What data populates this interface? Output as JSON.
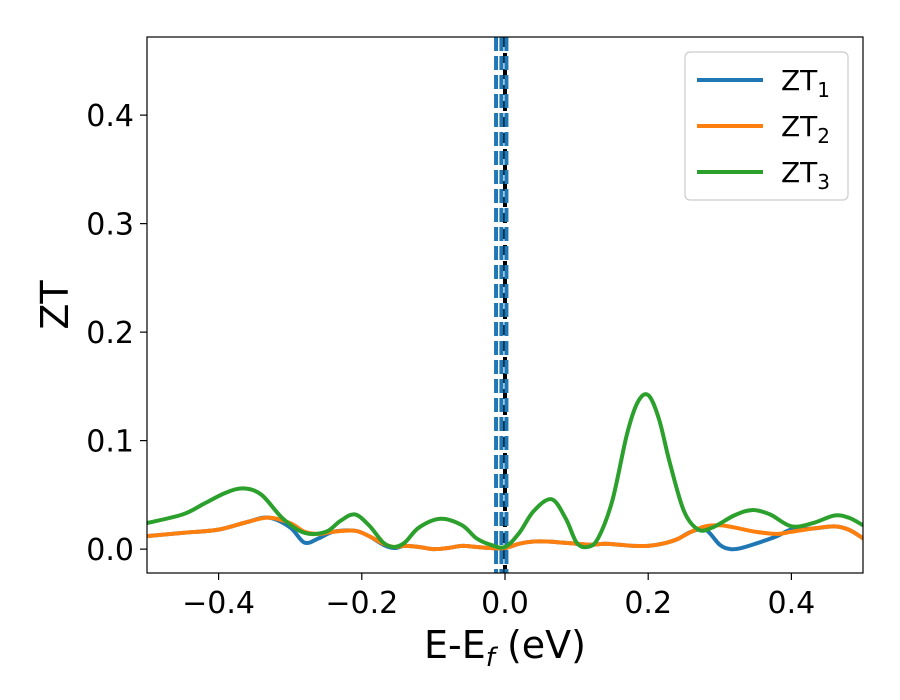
{
  "chart_data": {
    "type": "line",
    "title": "",
    "xlabel": {
      "main": "E-E",
      "sub": "f",
      "suffix": " (eV)"
    },
    "ylabel": "ZT",
    "xlim": [
      -0.5,
      0.5
    ],
    "ylim": [
      -0.022,
      0.472
    ],
    "xticks": [
      -0.4,
      -0.2,
      0.0,
      0.2,
      0.4
    ],
    "xtick_labels": [
      "−0.4",
      "−0.2",
      "0.0",
      "0.2",
      "0.4"
    ],
    "yticks": [
      0.0,
      0.1,
      0.2,
      0.3,
      0.4
    ],
    "ytick_labels": [
      "0.0",
      "0.1",
      "0.2",
      "0.3",
      "0.4"
    ],
    "grid": false,
    "legend_position": "top-right",
    "vertical_lines": [
      {
        "x": 0.0,
        "color": "#000000",
        "style": "dashed"
      },
      {
        "x": -0.0125,
        "color": "#1f77b4",
        "style": "dashed"
      },
      {
        "x": -0.005,
        "color": "#1f77b4",
        "style": "dashed"
      },
      {
        "x": 0.002,
        "color": "#1f77b4",
        "style": "dashed"
      }
    ],
    "series": [
      {
        "name": "ZT",
        "sub": "1",
        "color": "#1f77b4",
        "x": [
          -0.5,
          -0.45,
          -0.4,
          -0.36,
          -0.33,
          -0.3,
          -0.28,
          -0.26,
          -0.24,
          -0.21,
          -0.19,
          -0.17,
          -0.155,
          -0.14,
          -0.12,
          -0.1,
          -0.08,
          -0.06,
          -0.04,
          -0.02,
          0.0,
          0.02,
          0.04,
          0.06,
          0.08,
          0.1,
          0.12,
          0.14,
          0.16,
          0.18,
          0.2,
          0.22,
          0.24,
          0.26,
          0.28,
          0.3,
          0.315,
          0.33,
          0.35,
          0.38,
          0.4,
          0.43,
          0.46,
          0.48,
          0.5
        ],
        "y": [
          0.012,
          0.015,
          0.018,
          0.025,
          0.029,
          0.02,
          0.006,
          0.01,
          0.016,
          0.017,
          0.012,
          0.004,
          0.001,
          0.003,
          0.002,
          0.0,
          0.001,
          0.003,
          0.002,
          0.001,
          0.001,
          0.005,
          0.007,
          0.007,
          0.006,
          0.005,
          0.004,
          0.005,
          0.004,
          0.003,
          0.003,
          0.005,
          0.009,
          0.016,
          0.018,
          0.004,
          0.0,
          0.001,
          0.005,
          0.012,
          0.018,
          0.019,
          0.021,
          0.018,
          0.01
        ]
      },
      {
        "name": "ZT",
        "sub": "2",
        "color": "#ff7f0e",
        "x": [
          -0.5,
          -0.45,
          -0.4,
          -0.36,
          -0.33,
          -0.3,
          -0.28,
          -0.26,
          -0.24,
          -0.21,
          -0.19,
          -0.17,
          -0.155,
          -0.14,
          -0.12,
          -0.1,
          -0.08,
          -0.06,
          -0.04,
          -0.02,
          0.0,
          0.02,
          0.04,
          0.06,
          0.08,
          0.1,
          0.12,
          0.14,
          0.16,
          0.18,
          0.2,
          0.22,
          0.24,
          0.26,
          0.28,
          0.3,
          0.32,
          0.35,
          0.38,
          0.4,
          0.43,
          0.46,
          0.48,
          0.5
        ],
        "y": [
          0.012,
          0.015,
          0.018,
          0.025,
          0.029,
          0.024,
          0.016,
          0.014,
          0.016,
          0.017,
          0.012,
          0.005,
          0.002,
          0.003,
          0.002,
          0.0,
          0.001,
          0.003,
          0.002,
          0.001,
          0.001,
          0.005,
          0.007,
          0.007,
          0.006,
          0.005,
          0.004,
          0.005,
          0.004,
          0.003,
          0.003,
          0.005,
          0.009,
          0.016,
          0.021,
          0.022,
          0.02,
          0.016,
          0.014,
          0.016,
          0.019,
          0.021,
          0.018,
          0.01
        ]
      },
      {
        "name": "ZT",
        "sub": "3",
        "color": "#2ca02c",
        "x": [
          -0.5,
          -0.45,
          -0.42,
          -0.39,
          -0.365,
          -0.34,
          -0.31,
          -0.28,
          -0.25,
          -0.23,
          -0.21,
          -0.19,
          -0.17,
          -0.155,
          -0.14,
          -0.12,
          -0.09,
          -0.06,
          -0.04,
          -0.02,
          0.0,
          0.02,
          0.04,
          0.065,
          0.085,
          0.1,
          0.115,
          0.13,
          0.15,
          0.17,
          0.185,
          0.2,
          0.215,
          0.23,
          0.25,
          0.27,
          0.29,
          0.32,
          0.345,
          0.37,
          0.4,
          0.43,
          0.46,
          0.48,
          0.5
        ],
        "y": [
          0.024,
          0.032,
          0.042,
          0.052,
          0.056,
          0.05,
          0.028,
          0.015,
          0.016,
          0.026,
          0.032,
          0.022,
          0.006,
          0.002,
          0.006,
          0.02,
          0.028,
          0.022,
          0.01,
          0.004,
          0.002,
          0.015,
          0.035,
          0.046,
          0.028,
          0.006,
          0.002,
          0.01,
          0.045,
          0.105,
          0.135,
          0.142,
          0.12,
          0.08,
          0.035,
          0.018,
          0.02,
          0.031,
          0.036,
          0.032,
          0.021,
          0.024,
          0.031,
          0.029,
          0.022
        ]
      }
    ]
  }
}
